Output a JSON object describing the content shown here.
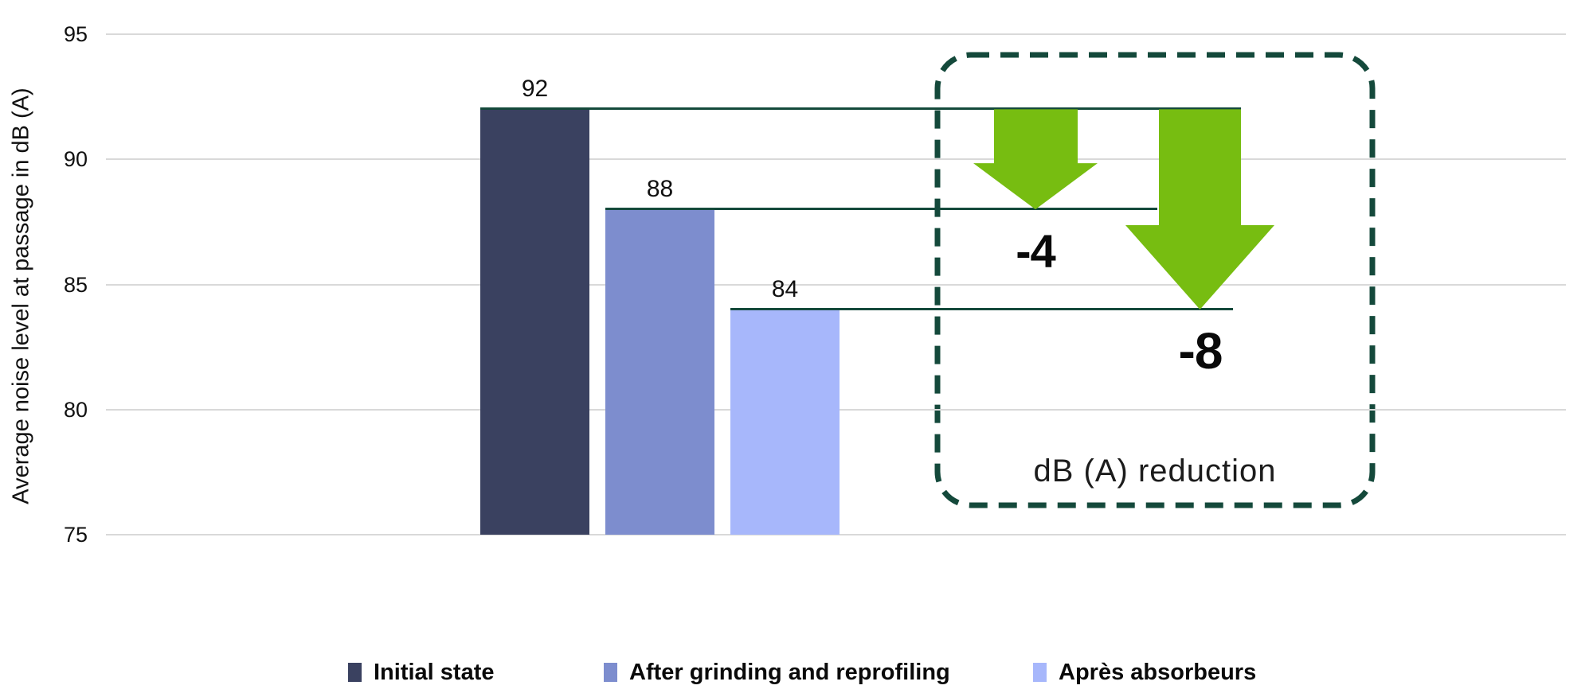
{
  "chart_data": {
    "type": "bar",
    "ylabel": "Average noise level at passage in dB (A)",
    "ylim": [
      75,
      95
    ],
    "yticks": [
      95,
      90,
      85,
      80,
      75
    ],
    "categories": [
      "Initial state",
      "After grinding and reprofiling",
      "Après absorbeurs"
    ],
    "values": [
      92,
      88,
      84
    ],
    "bar_colors": [
      "#3A4160",
      "#7D8DCE",
      "#A7B7FB"
    ],
    "grid": true,
    "legend_position": "bottom",
    "annotations": {
      "box_label": "dB (A) reduction",
      "reductions": [
        {
          "label": "-4",
          "from": 92,
          "to": 88
        },
        {
          "label": "-8",
          "from": 92,
          "to": 84
        }
      ]
    },
    "colors": {
      "arrow_green": "#77BD11",
      "line_dark_green": "#14493B",
      "gridline_gray": "#D9D9D9"
    }
  }
}
